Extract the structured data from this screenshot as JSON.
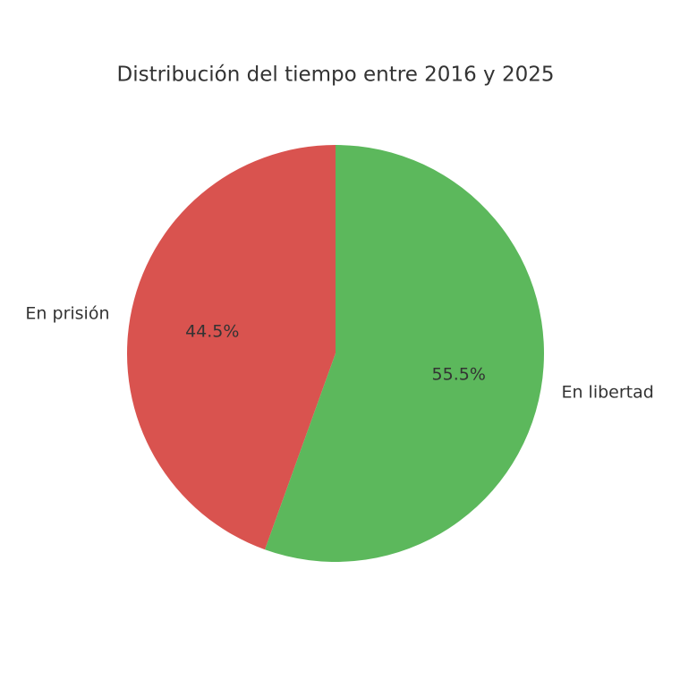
{
  "chart_data": {
    "type": "pie",
    "title": "Distribución del tiempo entre 2016 y 2025",
    "categories": [
      "En prisión",
      "En libertad"
    ],
    "values": [
      44.5,
      55.5
    ],
    "value_labels": [
      "44.5%",
      "55.5%"
    ],
    "colors": [
      "#d9534f",
      "#5cb85c"
    ]
  }
}
